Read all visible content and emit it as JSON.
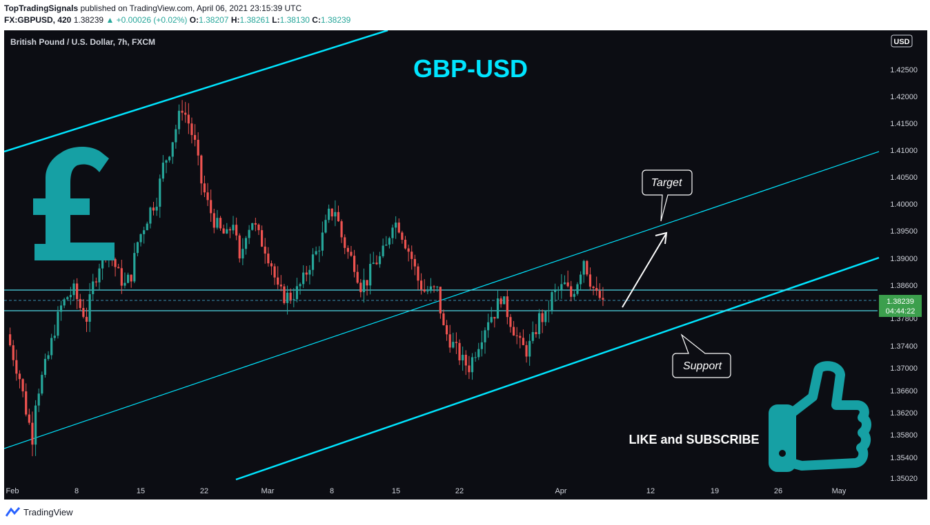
{
  "header": {
    "author": "TopTradingSignals",
    "published": "published on TradingView.com, April 06, 2021 23:15:39 UTC",
    "symbol": "FX:GBPUSD, 420",
    "last": "1.38239",
    "change": "▲ +0.00026 (+0.02%)",
    "o_label": "O:",
    "o_val": "1.38207",
    "h_label": "H:",
    "h_val": "1.38261",
    "l_label": "L:",
    "l_val": "1.38130",
    "c_label": "C:",
    "c_val": "1.38239"
  },
  "chart": {
    "legend": "British Pound / U.S. Dollar, 7h, FXCM",
    "currency_badge": "USD",
    "big_title": "GBP-USD",
    "target_label": "Target",
    "support_label": "Support",
    "cta": "LIKE and SUBSCRIBE",
    "price_tag": "1.38239",
    "countdown": "04:44:22"
  },
  "footer": {
    "brand": "TradingView"
  },
  "colors": {
    "background": "#0c0d13",
    "up": "#26a69a",
    "down": "#ef5350",
    "channel": "#00e5ff",
    "title": "#00e5ff",
    "icon_teal": "#16a0a4",
    "price_tag": "#3c9f4d"
  },
  "chart_data": {
    "type": "candlestick",
    "title": "GBP-USD",
    "y_range": [
      1.3502,
      1.4292
    ],
    "y_ticks": [
      "1.42500",
      "1.42000",
      "1.41500",
      "1.41000",
      "1.40500",
      "1.40000",
      "1.39500",
      "1.39000",
      "1.38600",
      "1.37800",
      "1.37400",
      "1.37000",
      "1.36600",
      "1.36200",
      "1.35800",
      "1.35400",
      "1.35020"
    ],
    "x_ticks": [
      "Feb",
      "8",
      "15",
      "22",
      "Mar",
      "8",
      "15",
      "22",
      "Apr",
      "12",
      "19",
      "26",
      "May"
    ],
    "last_price": 1.38239,
    "path": [
      [
        0,
        1.376
      ],
      [
        2,
        1.372
      ],
      [
        4,
        1.368
      ],
      [
        6,
        1.362
      ],
      [
        8,
        1.357
      ],
      [
        9,
        1.364
      ],
      [
        11,
        1.368
      ],
      [
        13,
        1.372
      ],
      [
        15,
        1.377
      ],
      [
        17,
        1.381
      ],
      [
        19,
        1.383
      ],
      [
        21,
        1.384
      ],
      [
        23,
        1.381
      ],
      [
        25,
        1.379
      ],
      [
        27,
        1.385
      ],
      [
        29,
        1.389
      ],
      [
        31,
        1.392
      ],
      [
        33,
        1.39
      ],
      [
        35,
        1.387
      ],
      [
        37,
        1.385
      ],
      [
        39,
        1.387
      ],
      [
        41,
        1.393
      ],
      [
        43,
        1.396
      ],
      [
        45,
        1.399
      ],
      [
        47,
        1.401
      ],
      [
        49,
        1.407
      ],
      [
        51,
        1.41
      ],
      [
        53,
        1.414
      ],
      [
        55,
        1.418
      ],
      [
        57,
        1.415
      ],
      [
        59,
        1.411
      ],
      [
        61,
        1.404
      ],
      [
        63,
        1.4
      ],
      [
        65,
        1.397
      ],
      [
        67,
        1.395
      ],
      [
        69,
        1.394
      ],
      [
        71,
        1.397
      ],
      [
        73,
        1.389
      ],
      [
        75,
        1.395
      ],
      [
        77,
        1.397
      ],
      [
        79,
        1.394
      ],
      [
        81,
        1.392
      ],
      [
        83,
        1.389
      ],
      [
        85,
        1.384
      ],
      [
        87,
        1.383
      ],
      [
        89,
        1.383
      ],
      [
        91,
        1.384
      ],
      [
        93,
        1.386
      ],
      [
        95,
        1.389
      ],
      [
        97,
        1.391
      ],
      [
        99,
        1.394
      ],
      [
        101,
        1.398
      ],
      [
        103,
        1.399
      ],
      [
        105,
        1.394
      ],
      [
        107,
        1.391
      ],
      [
        109,
        1.389
      ],
      [
        111,
        1.385
      ],
      [
        113,
        1.386
      ],
      [
        115,
        1.389
      ],
      [
        117,
        1.39
      ],
      [
        119,
        1.392
      ],
      [
        121,
        1.397
      ],
      [
        123,
        1.396
      ],
      [
        125,
        1.393
      ],
      [
        127,
        1.39
      ],
      [
        129,
        1.386
      ],
      [
        131,
        1.384
      ],
      [
        133,
        1.384
      ],
      [
        135,
        1.384
      ],
      [
        137,
        1.377
      ],
      [
        139,
        1.375
      ],
      [
        141,
        1.373
      ],
      [
        143,
        1.371
      ],
      [
        145,
        1.37
      ],
      [
        147,
        1.373
      ],
      [
        149,
        1.376
      ],
      [
        151,
        1.379
      ],
      [
        153,
        1.38
      ],
      [
        155,
        1.383
      ],
      [
        157,
        1.38
      ],
      [
        159,
        1.377
      ],
      [
        161,
        1.374
      ],
      [
        163,
        1.373
      ],
      [
        165,
        1.375
      ],
      [
        167,
        1.379
      ],
      [
        169,
        1.379
      ],
      [
        171,
        1.383
      ],
      [
        173,
        1.384
      ],
      [
        175,
        1.385
      ],
      [
        177,
        1.383
      ],
      [
        179,
        1.386
      ],
      [
        181,
        1.39
      ],
      [
        183,
        1.386
      ],
      [
        185,
        1.383
      ],
      [
        187,
        1.3824
      ]
    ],
    "levels": {
      "resistance_top": 1.3843,
      "resistance_bottom": 1.3805,
      "dashed": 1.3826
    },
    "channel": {
      "outer_upper_line": "steep channel top-left",
      "mid_line": "thin rising line",
      "lower_line": "support trend line"
    }
  }
}
